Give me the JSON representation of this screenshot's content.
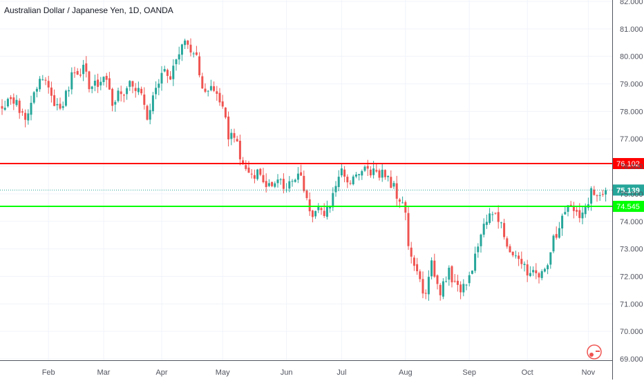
{
  "chart_data": {
    "type": "candlestick",
    "title": "Australian Dollar / Japanese Yen, 1D, OANDA",
    "ylim": [
      68.95,
      82.05
    ],
    "y_ticks": [
      "69.000",
      "70.000",
      "71.000",
      "72.000",
      "73.000",
      "74.000",
      "75.000",
      "76.000",
      "77.000",
      "78.000",
      "79.000",
      "80.000",
      "81.000",
      "82.000"
    ],
    "x_ticks": [
      "Feb",
      "Mar",
      "Apr",
      "May",
      "Jun",
      "Jul",
      "Aug",
      "Sep",
      "Oct",
      "Nov"
    ],
    "x_tick_bars": [
      16,
      35,
      55,
      76,
      98,
      117,
      139,
      161,
      181,
      202
    ],
    "bar_count": 210,
    "close_anchors": [
      [
        0,
        78.2
      ],
      [
        4,
        78.5
      ],
      [
        8,
        77.8
      ],
      [
        12,
        79.0
      ],
      [
        15,
        79.3
      ],
      [
        18,
        78.0
      ],
      [
        21,
        78.4
      ],
      [
        24,
        79.2
      ],
      [
        28,
        79.5
      ],
      [
        31,
        78.8
      ],
      [
        35,
        79.4
      ],
      [
        38,
        78.4
      ],
      [
        41,
        78.6
      ],
      [
        44,
        79.0
      ],
      [
        47,
        78.9
      ],
      [
        50,
        77.9
      ],
      [
        53,
        78.9
      ],
      [
        56,
        79.4
      ],
      [
        58,
        79.3
      ],
      [
        60,
        79.7
      ],
      [
        62,
        80.6
      ],
      [
        64,
        80.3
      ],
      [
        67,
        79.9
      ],
      [
        70,
        78.6
      ],
      [
        72,
        78.8
      ],
      [
        75,
        78.5
      ],
      [
        78,
        77.2
      ],
      [
        81,
        76.8
      ],
      [
        83,
        75.9
      ],
      [
        85,
        75.7
      ],
      [
        88,
        75.7
      ],
      [
        90,
        75.4
      ],
      [
        93,
        75.5
      ],
      [
        95,
        75.7
      ],
      [
        97,
        75.1
      ],
      [
        100,
        75.5
      ],
      [
        103,
        75.6
      ],
      [
        105,
        74.8
      ],
      [
        107,
        74.3
      ],
      [
        109,
        74.6
      ],
      [
        111,
        74.3
      ],
      [
        113,
        74.7
      ],
      [
        115,
        75.3
      ],
      [
        117,
        75.7
      ],
      [
        119,
        75.5
      ],
      [
        121,
        75.5
      ],
      [
        124,
        75.8
      ],
      [
        127,
        75.7
      ],
      [
        130,
        75.8
      ],
      [
        133,
        75.6
      ],
      [
        136,
        75.0
      ],
      [
        139,
        74.5
      ],
      [
        140,
        73.1
      ],
      [
        142,
        72.3
      ],
      [
        144,
        71.7
      ],
      [
        146,
        71.4
      ],
      [
        148,
        72.4
      ],
      [
        151,
        71.4
      ],
      [
        154,
        72.3
      ],
      [
        156,
        71.6
      ],
      [
        158,
        71.4
      ],
      [
        160,
        71.6
      ],
      [
        162,
        72.4
      ],
      [
        164,
        73.1
      ],
      [
        166,
        73.8
      ],
      [
        168,
        74.4
      ],
      [
        171,
        74.2
      ],
      [
        173,
        73.5
      ],
      [
        175,
        72.9
      ],
      [
        177,
        72.8
      ],
      [
        179,
        72.6
      ],
      [
        181,
        72.1
      ],
      [
        183,
        72.3
      ],
      [
        185,
        72.0
      ],
      [
        187,
        72.2
      ],
      [
        189,
        73.0
      ],
      [
        191,
        73.6
      ],
      [
        193,
        74.1
      ],
      [
        195,
        74.5
      ],
      [
        197,
        74.3
      ],
      [
        199,
        74.2
      ],
      [
        201,
        74.6
      ],
      [
        203,
        75.0
      ],
      [
        205,
        75.1
      ],
      [
        207,
        75.0
      ],
      [
        208,
        75.14
      ]
    ],
    "up_color": "#26a69a",
    "down_color": "#ef5350",
    "grid": true,
    "last_price": "75.139",
    "horizontal_lines": [
      {
        "price": 76.102,
        "label": "76.102",
        "color": "#ff0000"
      },
      {
        "price": 74.545,
        "label": "74.545",
        "color": "#00ff00"
      }
    ],
    "current_price_line": {
      "price": 75.139,
      "label": "75.139",
      "color": "#26a69a"
    }
  }
}
